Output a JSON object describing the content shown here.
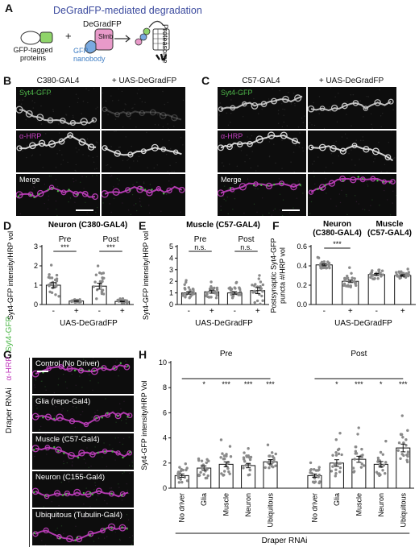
{
  "panelA": {
    "label": "A",
    "title": "DeGradFP-mediated degradation",
    "gfp_proteins": "GFP-tagged proteins",
    "plus": "+",
    "degrad_label": "DeGradFP",
    "slmb": "Slmb",
    "gfp_nanobody": "GFP nanobody",
    "proteasome": "Proteasome"
  },
  "panelB": {
    "label": "B",
    "col1": "C380-GAL4",
    "col2": "+ UAS-DeGradFP",
    "row1": "Syt4-GFP",
    "row2": "α-HRP",
    "row3": "Merge"
  },
  "panelC": {
    "label": "C",
    "col1": "C57-GAL4",
    "col2": "+ UAS-DeGradFP",
    "row1": "Syt4-GFP",
    "row2": "α-HRP",
    "row3": "Merge"
  },
  "panelG": {
    "label": "G",
    "side_label": "Draper RNAi",
    "channel_magenta": "α-HRP",
    "channel_green": "Syt4-GFP",
    "tiles": [
      "Control (No Driver)",
      "Glia (repo-Gal4)",
      "Muscle (C57-Gal4)",
      "Neuron (C155-Gal4)",
      "Ubiquitous (Tubulin-Gal4)"
    ]
  },
  "colors": {
    "magenta": "#c23fbf",
    "green": "#4fb84a",
    "title_blue": "#3b4a9e"
  },
  "chart_data": [
    {
      "id": "D",
      "type": "bar",
      "title": "Neuron (C380-GAL4)",
      "ylabel": "Syt4-GFP intensity/HRP vol",
      "xlabel": "UAS-DeGradFP",
      "ylim": [
        0,
        3
      ],
      "yticks": [
        0,
        1,
        2,
        3
      ],
      "groups": [
        "Pre",
        "Post"
      ],
      "categories": [
        "-",
        "+",
        "-",
        "+"
      ],
      "values": [
        1.0,
        0.18,
        0.95,
        0.16
      ],
      "sig": [
        "***",
        "***"
      ]
    },
    {
      "id": "E",
      "type": "bar",
      "title": "Muscle (C57-GAL4)",
      "ylabel": "Syt4-GFP intensity/HRP vol",
      "xlabel": "UAS-DeGradFP",
      "ylim": [
        0,
        5
      ],
      "yticks": [
        0,
        1,
        2,
        3,
        4,
        5
      ],
      "groups": [
        "Pre",
        "Post"
      ],
      "categories": [
        "-",
        "+",
        "-",
        "+"
      ],
      "values": [
        1.0,
        1.1,
        1.0,
        1.2
      ],
      "sig": [
        "n.s.",
        "n.s."
      ]
    },
    {
      "id": "F",
      "type": "bar",
      "title": "",
      "ylabel": "Postsynaptic Syt4-GFP puncta #/HRP vol",
      "xlabel": "UAS-DeGradFP",
      "ylim": [
        0,
        0.6
      ],
      "yticks": [
        0.0,
        0.2,
        0.4,
        0.6
      ],
      "groups": [
        "Neuron (C380-GAL4)",
        "Muscle (C57-GAL4)"
      ],
      "categories": [
        "-",
        "+",
        "-",
        "+"
      ],
      "values": [
        0.41,
        0.24,
        0.31,
        0.3
      ],
      "sig": [
        "***",
        ""
      ]
    },
    {
      "id": "H",
      "type": "bar",
      "title": "",
      "ylabel": "Syt4-GFP intensity/HRP Vol",
      "xlabel": "Draper RNAi",
      "ylim": [
        0,
        10
      ],
      "yticks": [
        0,
        2,
        4,
        6,
        8,
        10
      ],
      "groups": [
        "Pre",
        "Post"
      ],
      "categories": [
        "No driver",
        "Glia",
        "Muscle",
        "Neuron",
        "Ubiquitous",
        "No driver",
        "Glia",
        "Muscle",
        "Neuron",
        "Ubiquitous"
      ],
      "values": [
        1.0,
        1.6,
        1.9,
        1.8,
        2.1,
        1.0,
        2.0,
        2.3,
        1.9,
        3.2
      ],
      "sig": [
        "",
        "*",
        "***",
        "***",
        "***",
        "",
        "*",
        "***",
        "*",
        "***"
      ]
    }
  ]
}
